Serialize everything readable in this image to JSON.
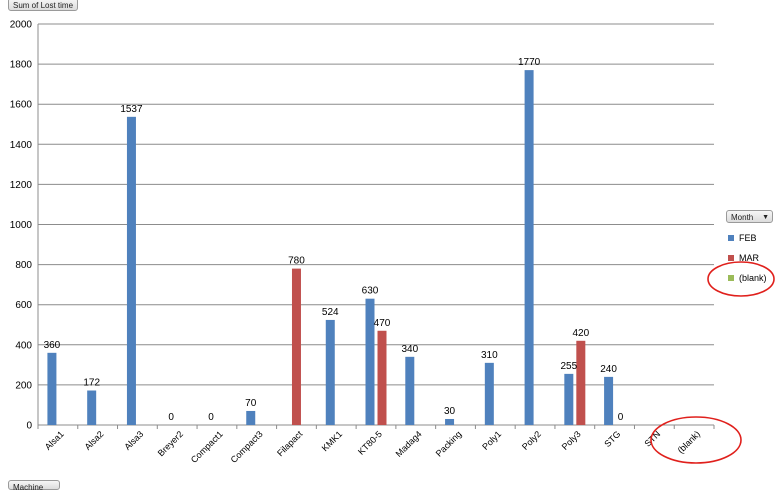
{
  "field_buttons": {
    "value_field": "Sum of Lost time",
    "series_field": "Month",
    "axis_field": "Machine"
  },
  "colors": {
    "FEB": "#4f81bd",
    "MAR": "#c0504d",
    "(blank)": "#9bbb59",
    "grid": "#8c8c8c",
    "annotation": "#e0201c"
  },
  "icons": {
    "series_dropdown": "triangle-down-icon"
  },
  "chart_data": {
    "type": "bar",
    "categories": [
      "Alsa1",
      "Alsa2",
      "Alsa3",
      "Breyer2",
      "Compact1",
      "Compact3",
      "Filapact",
      "KMK1",
      "KT80-5",
      "Madag4",
      "Packing",
      "Poly1",
      "Poly2",
      "Poly3",
      "STG",
      "STN",
      "(blank)"
    ],
    "series": [
      {
        "name": "FEB",
        "values": [
          360,
          172,
          1537,
          0,
          0,
          70,
          null,
          524,
          630,
          340,
          30,
          310,
          1770,
          255,
          240,
          null,
          null
        ]
      },
      {
        "name": "MAR",
        "values": [
          null,
          null,
          null,
          null,
          null,
          null,
          780,
          null,
          470,
          null,
          null,
          null,
          null,
          420,
          0,
          null,
          null
        ]
      },
      {
        "name": "(blank)",
        "values": [
          null,
          null,
          null,
          null,
          null,
          null,
          null,
          null,
          null,
          null,
          null,
          null,
          null,
          null,
          null,
          null,
          null
        ]
      }
    ],
    "ylim": [
      0,
      2000
    ],
    "yticks": [
      0,
      200,
      400,
      600,
      800,
      1000,
      1200,
      1400,
      1600,
      1800,
      2000
    ],
    "grid": true,
    "legend_placement": "right",
    "annotations": [
      "red circle around (blank) legend entry",
      "red circle around (blank) category label"
    ]
  }
}
